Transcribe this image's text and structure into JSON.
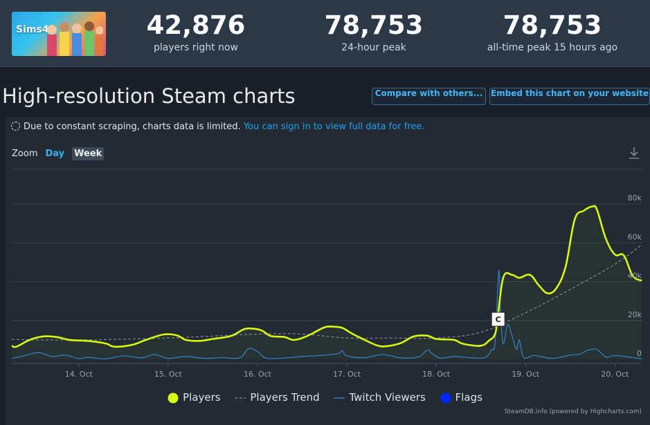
{
  "header": {
    "game_logo_text": "Sims4",
    "stats": [
      {
        "value": "42,876",
        "label": "players right now"
      },
      {
        "value": "78,753",
        "label": "24-hour peak"
      },
      {
        "value": "78,753",
        "label": "all-time peak 15 hours ago"
      }
    ]
  },
  "page": {
    "title": "High-resolution Steam charts",
    "compare_button": "Compare with others...",
    "embed_button": "Embed this chart on your website"
  },
  "notice": {
    "text": "Due to constant scraping, charts data is limited.",
    "link": "You can sign in to view full data for free."
  },
  "zoom": {
    "label": "Zoom",
    "options": [
      "Day",
      "Week"
    ],
    "selected": "Week"
  },
  "icons": {
    "download": "download-icon",
    "notice": "loading-spinner-icon"
  },
  "colors": {
    "players": "#d7fb11",
    "trend": "#8a9098",
    "twitch": "#2f7fbf",
    "flags": "#0026ff",
    "accent": "#1aa3ef"
  },
  "legend": [
    "Players",
    "Players Trend",
    "Twitch Viewers",
    "Flags"
  ],
  "credit": "SteamDB.info (powered by Highcharts.com)",
  "chart_data": {
    "type": "line",
    "title": "",
    "x_labels": [
      "14. Oct",
      "15. Oct",
      "16. Oct",
      "17. Oct",
      "18. Oct",
      "19. Oct",
      "20. Oct"
    ],
    "y_ticks": [
      "0",
      "20k",
      "40k",
      "60k",
      "80k"
    ],
    "ylim": [
      0,
      80000
    ],
    "grid": true,
    "legend_position": "bottom",
    "x_range": [
      13.25,
      20.3
    ],
    "series": [
      {
        "name": "Players",
        "points": [
          [
            13.25,
            7000
          ],
          [
            13.3,
            6500
          ],
          [
            13.45,
            10000
          ],
          [
            13.6,
            11800
          ],
          [
            13.75,
            11500
          ],
          [
            13.9,
            10000
          ],
          [
            14.1,
            9500
          ],
          [
            14.3,
            8200
          ],
          [
            14.4,
            6500
          ],
          [
            14.6,
            7500
          ],
          [
            14.75,
            10000
          ],
          [
            14.95,
            12800
          ],
          [
            15.1,
            12300
          ],
          [
            15.2,
            10000
          ],
          [
            15.35,
            9500
          ],
          [
            15.5,
            10500
          ],
          [
            15.7,
            12000
          ],
          [
            15.85,
            15500
          ],
          [
            15.95,
            15800
          ],
          [
            16.05,
            14800
          ],
          [
            16.15,
            12000
          ],
          [
            16.3,
            11500
          ],
          [
            16.4,
            10000
          ],
          [
            16.5,
            11000
          ],
          [
            16.6,
            13000
          ],
          [
            16.75,
            16500
          ],
          [
            16.85,
            16800
          ],
          [
            16.95,
            16200
          ],
          [
            17.05,
            13500
          ],
          [
            17.2,
            10000
          ],
          [
            17.35,
            7000
          ],
          [
            17.45,
            6800
          ],
          [
            17.6,
            8300
          ],
          [
            17.75,
            11800
          ],
          [
            17.9,
            12200
          ],
          [
            18.0,
            10500
          ],
          [
            18.2,
            10000
          ],
          [
            18.3,
            8000
          ],
          [
            18.5,
            7000
          ],
          [
            18.6,
            10000
          ],
          [
            18.65,
            12200
          ],
          [
            18.68,
            18000
          ],
          [
            18.75,
            42000
          ],
          [
            18.85,
            43500
          ],
          [
            18.93,
            42000
          ],
          [
            19.05,
            43500
          ],
          [
            19.15,
            38000
          ],
          [
            19.25,
            34000
          ],
          [
            19.35,
            37000
          ],
          [
            19.45,
            48000
          ],
          [
            19.55,
            72000
          ],
          [
            19.65,
            76500
          ],
          [
            19.75,
            78750
          ],
          [
            19.8,
            77000
          ],
          [
            19.9,
            62000
          ],
          [
            20.0,
            54000
          ],
          [
            20.1,
            53500
          ],
          [
            20.2,
            43000
          ],
          [
            20.3,
            40500
          ]
        ]
      },
      {
        "name": "Players Trend",
        "points": [
          [
            13.25,
            10200
          ],
          [
            14.0,
            10000
          ],
          [
            15.0,
            11000
          ],
          [
            16.0,
            13000
          ],
          [
            16.5,
            13000
          ],
          [
            17.0,
            11000
          ],
          [
            17.5,
            11000
          ],
          [
            18.0,
            11000
          ],
          [
            18.5,
            14000
          ],
          [
            19.0,
            24000
          ],
          [
            19.5,
            36000
          ],
          [
            20.0,
            49000
          ],
          [
            20.3,
            59000
          ]
        ]
      },
      {
        "name": "Twitch Viewers",
        "points": [
          [
            13.25,
            500
          ],
          [
            13.4,
            2000
          ],
          [
            13.55,
            3500
          ],
          [
            13.7,
            1500
          ],
          [
            13.85,
            2200
          ],
          [
            14.0,
            400
          ],
          [
            14.1,
            1000
          ],
          [
            14.3,
            300
          ],
          [
            14.5,
            1800
          ],
          [
            14.7,
            800
          ],
          [
            14.85,
            2500
          ],
          [
            15.0,
            500
          ],
          [
            15.2,
            1500
          ],
          [
            15.4,
            500
          ],
          [
            15.6,
            900
          ],
          [
            15.8,
            800
          ],
          [
            15.9,
            5500
          ],
          [
            16.0,
            4000
          ],
          [
            16.1,
            600
          ],
          [
            16.3,
            700
          ],
          [
            16.5,
            1500
          ],
          [
            16.7,
            2000
          ],
          [
            16.9,
            3000
          ],
          [
            16.95,
            4500
          ],
          [
            17.0,
            1800
          ],
          [
            17.2,
            900
          ],
          [
            17.4,
            2500
          ],
          [
            17.6,
            800
          ],
          [
            17.8,
            1200
          ],
          [
            17.9,
            4800
          ],
          [
            17.95,
            3000
          ],
          [
            18.05,
            600
          ],
          [
            18.2,
            1500
          ],
          [
            18.4,
            800
          ],
          [
            18.55,
            1000
          ],
          [
            18.62,
            5000
          ],
          [
            18.66,
            9000
          ],
          [
            18.7,
            45500
          ],
          [
            18.72,
            24000
          ],
          [
            18.75,
            8000
          ],
          [
            18.8,
            18000
          ],
          [
            18.85,
            12000
          ],
          [
            18.9,
            5000
          ],
          [
            18.93,
            10000
          ],
          [
            18.98,
            1000
          ],
          [
            19.1,
            2000
          ],
          [
            19.3,
            500
          ],
          [
            19.5,
            2200
          ],
          [
            19.6,
            2600
          ],
          [
            19.7,
            4700
          ],
          [
            19.8,
            5000
          ],
          [
            19.9,
            1200
          ],
          [
            20.0,
            2000
          ],
          [
            20.2,
            900
          ],
          [
            20.3,
            300
          ]
        ]
      }
    ],
    "flags": [
      {
        "x": 18.69,
        "label": "C"
      }
    ]
  }
}
